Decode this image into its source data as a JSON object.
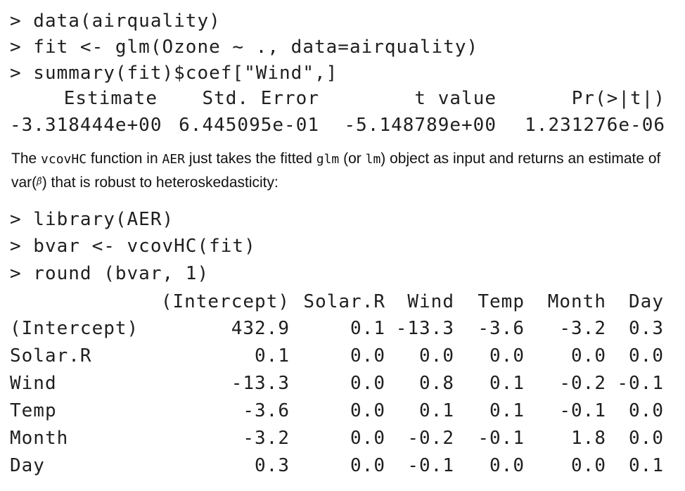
{
  "console1": {
    "line1": "> data(airquality)",
    "line2": "> fit <- glm(Ozone ~ ., data=airquality)",
    "line3": "> summary(fit)$coef[\"Wind\",]"
  },
  "coef": {
    "headers": [
      "Estimate",
      "Std. Error",
      "t value",
      "Pr(>|t|)"
    ],
    "values": [
      "-3.318444e+00",
      "6.445095e-01",
      "-5.148789e+00",
      "1.231276e-06"
    ]
  },
  "prose": {
    "p1": "The ",
    "c1": "vcovHC",
    "p2": " function in ",
    "c2": "AER",
    "p3": " just takes the fitted ",
    "c3": "glm",
    "p4": " (or ",
    "c4": "lm",
    "p5": ") object as input and returns an estimate of var(",
    "beta": "β̂",
    "p6": ") that is robust to heteroskedasticity:"
  },
  "console2": {
    "line1": "> library(AER)",
    "line2": "> bvar <- vcovHC(fit)",
    "line3": "> round (bvar, 1)"
  },
  "matrix": {
    "columns": [
      "(Intercept)",
      "Solar.R",
      "Wind",
      "Temp",
      "Month",
      "Day"
    ],
    "rows": [
      {
        "label": "(Intercept)",
        "values": [
          "432.9",
          "0.1",
          "-13.3",
          "-3.6",
          "-3.2",
          "0.3"
        ]
      },
      {
        "label": "Solar.R",
        "values": [
          "0.1",
          "0.0",
          "0.0",
          "0.0",
          "0.0",
          "0.0"
        ]
      },
      {
        "label": "Wind",
        "values": [
          "-13.3",
          "0.0",
          "0.8",
          "0.1",
          "-0.2",
          "-0.1"
        ]
      },
      {
        "label": "Temp",
        "values": [
          "-3.6",
          "0.0",
          "0.1",
          "0.1",
          "-0.1",
          "0.0"
        ]
      },
      {
        "label": "Month",
        "values": [
          "-3.2",
          "0.0",
          "-0.2",
          "-0.1",
          "1.8",
          "0.0"
        ]
      },
      {
        "label": "Day",
        "values": [
          "0.3",
          "0.0",
          "-0.1",
          "0.0",
          "0.0",
          "0.1"
        ]
      }
    ]
  }
}
